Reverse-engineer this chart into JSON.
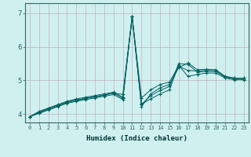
{
  "title": "",
  "xlabel": "Humidex (Indice chaleur)",
  "bg_color": "#d0f0f0",
  "grid_color": "#c0b0b8",
  "line_color": "#006060",
  "xlim": [
    -0.5,
    23.5
  ],
  "ylim": [
    3.75,
    7.3
  ],
  "yticks": [
    4,
    5,
    6,
    7
  ],
  "xticks": [
    0,
    1,
    2,
    3,
    4,
    5,
    6,
    7,
    8,
    9,
    10,
    11,
    12,
    13,
    14,
    15,
    16,
    17,
    18,
    19,
    20,
    21,
    22,
    23
  ],
  "series": [
    [
      3.92,
      4.08,
      4.18,
      4.28,
      4.38,
      4.45,
      4.5,
      4.55,
      4.6,
      4.65,
      4.5,
      6.9,
      4.3,
      4.45,
      4.6,
      4.72,
      5.45,
      5.12,
      5.18,
      5.22,
      5.22,
      5.07,
      5.02,
      5.02
    ],
    [
      3.92,
      4.06,
      4.16,
      4.26,
      4.36,
      4.42,
      4.47,
      4.52,
      4.57,
      4.62,
      4.47,
      6.9,
      4.28,
      4.55,
      4.7,
      4.82,
      5.5,
      5.48,
      5.25,
      5.27,
      5.27,
      5.12,
      5.07,
      5.07
    ],
    [
      3.92,
      4.02,
      4.12,
      4.22,
      4.32,
      4.38,
      4.43,
      4.48,
      4.53,
      4.58,
      4.43,
      6.9,
      4.22,
      4.6,
      4.78,
      4.88,
      5.38,
      5.52,
      5.32,
      5.33,
      5.32,
      5.12,
      5.07,
      5.07
    ],
    [
      3.92,
      4.04,
      4.14,
      4.24,
      4.34,
      4.4,
      4.46,
      4.51,
      4.56,
      4.63,
      4.58,
      6.9,
      4.48,
      4.72,
      4.88,
      4.95,
      5.42,
      5.3,
      5.28,
      5.3,
      5.28,
      5.09,
      5.04,
      5.04
    ]
  ]
}
